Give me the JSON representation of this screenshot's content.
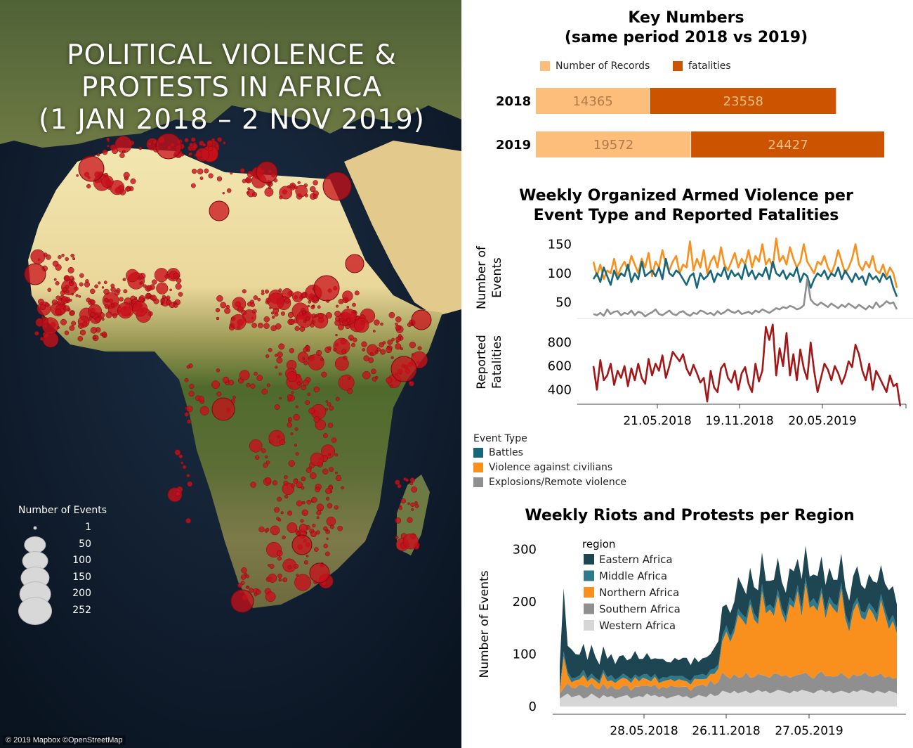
{
  "map": {
    "title": "POLITICAL VIOLENCE &\nPROTESTS IN AFRICA\n(1 JAN 2018 – 2 NOV 2019)",
    "size_legend_title": "Number of Events",
    "size_legend": [
      1,
      50,
      100,
      150,
      200,
      252
    ],
    "attribution": "© 2019 Mapbox ©OpenStreetMap",
    "point_color": "#c8101a"
  },
  "key_numbers": {
    "title": "Key Numbers\n(same period 2018 vs 2019)",
    "legend": [
      "Number of Records",
      "fatalities"
    ],
    "colors": {
      "records": "#fdbd7b",
      "fatalities": "#cc5300"
    }
  },
  "violence": {
    "title": "Weekly Organized Armed Violence per\nEvent Type and Reported Fatalities",
    "legend_title": "Event Type",
    "legend": [
      "Battles",
      "Violence against civilians",
      "Explosions/Remote violence"
    ],
    "colors": {
      "battles": "#17677c",
      "civilians": "#f98f1c",
      "explosions": "#8f8f8f",
      "fatalities": "#a21717"
    }
  },
  "protests": {
    "title": "Weekly Riots and Protests per Region",
    "legend_title": "region",
    "legend": [
      "Eastern Africa",
      "Middle Africa",
      "Northern Africa",
      "Southern Africa",
      "Western Africa"
    ],
    "colors": [
      "#1e4552",
      "#2e7a8c",
      "#f98f1c",
      "#8f8f8f",
      "#d6d6d6"
    ]
  },
  "chart_data": [
    {
      "type": "bar",
      "orientation": "horizontal-stacked",
      "categories": [
        "2018",
        "2019"
      ],
      "series": [
        {
          "name": "Number of Records",
          "values": [
            14365,
            19572
          ]
        },
        {
          "name": "fatalities",
          "values": [
            23558,
            24427
          ]
        }
      ]
    },
    {
      "type": "line",
      "ylabel": "Number of Events",
      "yticks": [
        50,
        100,
        150
      ],
      "ylim": [
        20,
        165
      ],
      "xlim": [
        "2018-01-01",
        "2019-11-02"
      ],
      "series": [
        {
          "name": "Battles",
          "values": [
            90,
            100,
            85,
            110,
            95,
            80,
            105,
            90,
            100,
            95,
            115,
            85,
            100,
            90,
            120,
            95,
            100,
            105,
            95,
            110,
            90,
            125,
            100,
            95,
            105,
            100,
            90,
            80,
            95,
            100,
            75,
            100,
            90,
            95,
            105,
            85,
            100,
            95,
            110,
            90,
            105,
            95,
            100,
            90,
            115,
            95,
            105,
            90,
            100,
            95,
            110,
            90,
            120,
            100,
            95,
            105,
            90,
            100,
            95,
            110,
            85,
            100,
            95,
            75,
            90,
            100,
            95,
            105,
            90,
            100,
            95,
            110,
            90,
            105,
            95,
            85,
            100,
            90,
            95,
            80,
            100,
            90,
            95,
            85,
            100,
            90,
            95,
            75,
            60
          ]
        },
        {
          "name": "Violence against civilians",
          "values": [
            120,
            95,
            115,
            90,
            105,
            100,
            125,
            95,
            110,
            120,
            105,
            130,
            115,
            100,
            125,
            110,
            135,
            95,
            120,
            110,
            140,
            115,
            105,
            120,
            130,
            100,
            115,
            110,
            155,
            105,
            125,
            110,
            140,
            100,
            120,
            130,
            110,
            145,
            115,
            105,
            120,
            135,
            110,
            125,
            115,
            140,
            110,
            130,
            120,
            150,
            115,
            125,
            110,
            160,
            120,
            130,
            115,
            145,
            125,
            110,
            120,
            150,
            120,
            110,
            100,
            120,
            115,
            130,
            110,
            100,
            115,
            140,
            120,
            100,
            110,
            125,
            150,
            115,
            105,
            120,
            110,
            130,
            105,
            100,
            115,
            95,
            110,
            100,
            75
          ]
        },
        {
          "name": "Explosions/Remote violence",
          "values": [
            30,
            28,
            32,
            27,
            38,
            30,
            34,
            35,
            28,
            32,
            30,
            36,
            28,
            34,
            32,
            26,
            30,
            33,
            38,
            30,
            28,
            32,
            36,
            30,
            28,
            33,
            35,
            30,
            27,
            32,
            30,
            36,
            34,
            30,
            32,
            28,
            35,
            30,
            33,
            38,
            34,
            32,
            36,
            30,
            32,
            34,
            30,
            36,
            33,
            38,
            35,
            32,
            36,
            40,
            38,
            42,
            40,
            44,
            42,
            38,
            40,
            45,
            90,
            55,
            48,
            45,
            50,
            46,
            42,
            48,
            44,
            40,
            46,
            42,
            48,
            44,
            40,
            46,
            42,
            38,
            44,
            40,
            50,
            42,
            46,
            52,
            48,
            50,
            38
          ]
        },
        {
          "name": "Reported Fatalities",
          "values": [
            600,
            400,
            650,
            480,
            520,
            620,
            440,
            560,
            500,
            600,
            430,
            580,
            480,
            620,
            500,
            450,
            660,
            520,
            620,
            560,
            690,
            500,
            600,
            720,
            680,
            640,
            700,
            580,
            520,
            610,
            540,
            460,
            500,
            300,
            560,
            420,
            380,
            580,
            620,
            500,
            460,
            560,
            400,
            540,
            590,
            450,
            380,
            620,
            470,
            560,
            930,
            820,
            950,
            520,
            750,
            600,
            880,
            520,
            700,
            480,
            740,
            580,
            490,
            800,
            560,
            380,
            500,
            620,
            570,
            480,
            600,
            540,
            450,
            520,
            640,
            590,
            780,
            700,
            560,
            480,
            620,
            400,
            560,
            500,
            440,
            380,
            520,
            430,
            450,
            260
          ]
        }
      ],
      "fatalities_yticks": [
        400,
        600,
        800
      ],
      "fatalities_ylabel": "Reported Fatalities",
      "xticks": [
        "21.05.2018",
        "19.11.2018",
        "20.05.2019"
      ]
    },
    {
      "type": "area",
      "stacked": true,
      "ylabel": "Number of Events",
      "yticks": [
        0,
        100,
        200,
        300
      ],
      "ylim": [
        0,
        310
      ],
      "xticks": [
        "28.05.2018",
        "26.11.2018",
        "27.05.2019"
      ],
      "series": [
        {
          "name": "Western Africa",
          "values": [
            15,
            20,
            25,
            18,
            20,
            22,
            15,
            18,
            25,
            20,
            15,
            22,
            18,
            20,
            15,
            18,
            20,
            22,
            15,
            18,
            20,
            18,
            25,
            20,
            22,
            18,
            20,
            15,
            18,
            20,
            22,
            18,
            20,
            15,
            18,
            22,
            20,
            18,
            25,
            20,
            22,
            30,
            28,
            25,
            30,
            25,
            28,
            30,
            25,
            28,
            32,
            28,
            30,
            25,
            28,
            32,
            30,
            28,
            25,
            30,
            28,
            32,
            30,
            28,
            25,
            30,
            32,
            28,
            30,
            25,
            28,
            30,
            28,
            25,
            30,
            28,
            32,
            30,
            28,
            25,
            30,
            28,
            25,
            30,
            28,
            25
          ]
        },
        {
          "name": "Southern Africa",
          "values": [
            10,
            15,
            20,
            18,
            15,
            20,
            25,
            18,
            20,
            15,
            18,
            22,
            15,
            20,
            18,
            15,
            20,
            18,
            15,
            20,
            18,
            22,
            15,
            18,
            20,
            15,
            18,
            20,
            22,
            18,
            15,
            20,
            18,
            15,
            20,
            18,
            22,
            20,
            25,
            22,
            25,
            35,
            30,
            28,
            32,
            30,
            28,
            35,
            30,
            28,
            30,
            32,
            28,
            30,
            35,
            30,
            28,
            32,
            30,
            28,
            32,
            30,
            35,
            30,
            28,
            32,
            35,
            30,
            28,
            32,
            30,
            35,
            30,
            28,
            32,
            30,
            28,
            35,
            30,
            32,
            30,
            35,
            30,
            28,
            25,
            30
          ]
        },
        {
          "name": "Northern Africa",
          "values": [
            5,
            60,
            15,
            10,
            15,
            10,
            20,
            12,
            10,
            15,
            10,
            20,
            15,
            10,
            12,
            18,
            15,
            12,
            15,
            18,
            10,
            15,
            12,
            10,
            15,
            12,
            10,
            15,
            12,
            10,
            15,
            12,
            10,
            12,
            15,
            12,
            10,
            15,
            12,
            20,
            25,
            60,
            85,
            70,
            80,
            120,
            110,
            90,
            140,
            110,
            95,
            160,
            120,
            130,
            110,
            150,
            120,
            100,
            140,
            130,
            160,
            110,
            170,
            130,
            140,
            120,
            150,
            110,
            140,
            130,
            120,
            160,
            110,
            90,
            120,
            140,
            110,
            100,
            130,
            120,
            100,
            140,
            120,
            90,
            110,
            85
          ]
        },
        {
          "name": "Middle Africa",
          "values": [
            5,
            10,
            6,
            8,
            5,
            7,
            10,
            6,
            8,
            5,
            7,
            6,
            8,
            10,
            6,
            5,
            8,
            6,
            7,
            5,
            8,
            6,
            10,
            7,
            5,
            6,
            8,
            5,
            7,
            10,
            6,
            8,
            5,
            7,
            6,
            8,
            10,
            6,
            8,
            10,
            8,
            10,
            12,
            10,
            8,
            12,
            10,
            14,
            10,
            12,
            10,
            14,
            12,
            10,
            14,
            12,
            10,
            12,
            14,
            10,
            12,
            16,
            12,
            10,
            14,
            12,
            10,
            14,
            12,
            10,
            14,
            12,
            10,
            14,
            12,
            10,
            12,
            14,
            10,
            12,
            16,
            12,
            10,
            14,
            12,
            10
          ]
        },
        {
          "name": "Eastern Africa",
          "values": [
            45,
            120,
            50,
            55,
            45,
            40,
            50,
            35,
            55,
            40,
            30,
            45,
            35,
            40,
            30,
            40,
            35,
            30,
            40,
            45,
            35,
            30,
            40,
            35,
            30,
            40,
            35,
            30,
            25,
            35,
            30,
            35,
            40,
            30,
            35,
            25,
            30,
            35,
            30,
            40,
            45,
            55,
            40,
            45,
            50,
            60,
            55,
            45,
            60,
            50,
            55,
            60,
            50,
            45,
            55,
            60,
            50,
            45,
            55,
            60,
            50,
            55,
            60,
            50,
            45,
            55,
            60,
            50,
            55,
            45,
            50,
            55,
            50,
            45,
            55,
            60,
            50,
            45,
            55,
            50,
            60,
            55,
            50,
            60,
            55,
            45
          ]
        }
      ]
    }
  ]
}
